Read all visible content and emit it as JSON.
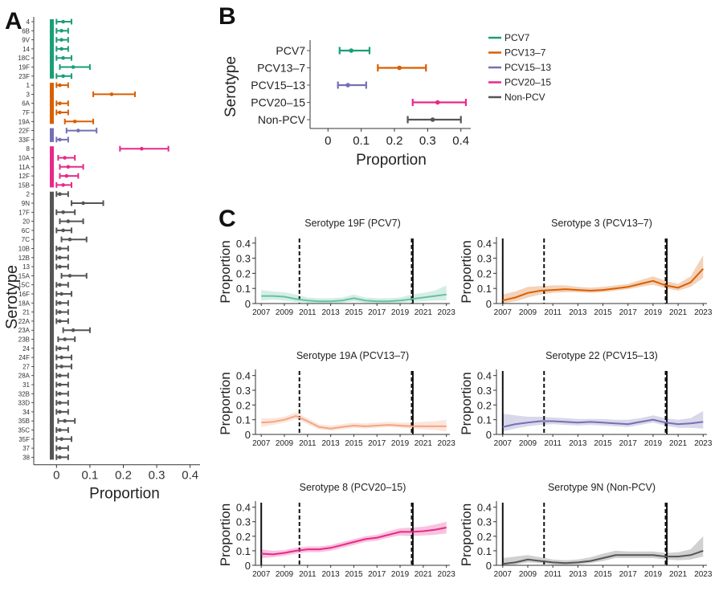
{
  "panel_letters": {
    "a": "A",
    "b": "B",
    "c": "C"
  },
  "colors": {
    "PCV7": "#1a9e77",
    "PCV13-7": "#d95f02",
    "PCV15-13": "#7570b3",
    "PCV20-15": "#e7298a",
    "Non-PCV": "#555555",
    "19A-light": "#f4a582",
    "19F-light": "#66c2a5"
  },
  "chart_data": [
    {
      "id": "A",
      "type": "scatter",
      "orientation": "horizontal",
      "xlabel": "Proportion",
      "ylabel": "Serotype",
      "xlim": [
        -0.02,
        0.42
      ],
      "xticks": [
        0,
        0.1,
        0.2,
        0.3,
        0.4
      ],
      "xtick_labels": [
        "0",
        "0.1",
        "0.2",
        "0.3",
        "0.4"
      ],
      "groups": [
        {
          "name": "PCV7",
          "categories": [
            "4",
            "6B",
            "9V",
            "14",
            "18C",
            "19F",
            "23F"
          ],
          "values": [
            0.02,
            0.015,
            0.015,
            0.015,
            0.02,
            0.05,
            0.02
          ],
          "low": [
            0,
            0,
            0,
            0,
            0,
            0.01,
            0
          ],
          "high": [
            0.045,
            0.035,
            0.035,
            0.035,
            0.045,
            0.1,
            0.045
          ]
        },
        {
          "name": "PCV13-7",
          "categories": [
            "1",
            "3",
            "6A",
            "7F",
            "19A"
          ],
          "values": [
            0.01,
            0.165,
            0.01,
            0.01,
            0.055
          ],
          "low": [
            0,
            0.11,
            0,
            0,
            0.025
          ],
          "high": [
            0.035,
            0.235,
            0.035,
            0.035,
            0.11
          ]
        },
        {
          "name": "PCV15-13",
          "categories": [
            "22F",
            "33F"
          ],
          "values": [
            0.065,
            0.01
          ],
          "low": [
            0.03,
            0
          ],
          "high": [
            0.12,
            0.035
          ]
        },
        {
          "name": "PCV20-15",
          "categories": [
            "8",
            "10A",
            "11A",
            "12F",
            "15B"
          ],
          "values": [
            0.255,
            0.025,
            0.035,
            0.03,
            0.02
          ],
          "low": [
            0.19,
            0.005,
            0.01,
            0.01,
            0
          ],
          "high": [
            0.335,
            0.055,
            0.08,
            0.065,
            0.045
          ]
        },
        {
          "name": "Non-PCV",
          "categories": [
            "2",
            "9N",
            "17F",
            "20",
            "6C",
            "7C",
            "10B",
            "12B",
            "13",
            "15A",
            "15C",
            "16F",
            "18A",
            "21",
            "22A",
            "23A",
            "23B",
            "24",
            "24F",
            "27",
            "28A",
            "31",
            "32B",
            "33D",
            "34",
            "35B",
            "35C",
            "35F",
            "37",
            "38"
          ],
          "values": [
            0.01,
            0.08,
            0.02,
            0.035,
            0.02,
            0.04,
            0.01,
            0.01,
            0.01,
            0.04,
            0.01,
            0.015,
            0.01,
            0.01,
            0.01,
            0.05,
            0.025,
            0.01,
            0.015,
            0.015,
            0.01,
            0.01,
            0.01,
            0.01,
            0.01,
            0.025,
            0.01,
            0.015,
            0.01,
            0.01
          ],
          "low": [
            0,
            0.045,
            0,
            0.01,
            0,
            0.015,
            0,
            0,
            0,
            0.015,
            0,
            0,
            0,
            0,
            0,
            0.02,
            0.005,
            0,
            0,
            0,
            0,
            0,
            0,
            0,
            0,
            0.005,
            0,
            0,
            0,
            0
          ],
          "high": [
            0.035,
            0.14,
            0.055,
            0.08,
            0.045,
            0.09,
            0.035,
            0.035,
            0.035,
            0.09,
            0.035,
            0.045,
            0.035,
            0.035,
            0.035,
            0.1,
            0.055,
            0.035,
            0.045,
            0.045,
            0.035,
            0.035,
            0.035,
            0.035,
            0.035,
            0.055,
            0.035,
            0.045,
            0.035,
            0.035
          ]
        }
      ]
    },
    {
      "id": "B",
      "type": "scatter",
      "orientation": "horizontal",
      "xlabel": "Proportion",
      "ylabel": "Serotype",
      "xlim": [
        -0.02,
        0.42
      ],
      "xticks": [
        0,
        0.1,
        0.2,
        0.3,
        0.4
      ],
      "xtick_labels": [
        "0",
        "0.1",
        "0.2",
        "0.3",
        "0.4"
      ],
      "categories": [
        "PCV7",
        "PCV13–7",
        "PCV15–13",
        "PCV20–15",
        "Non-PCV"
      ],
      "keys": [
        "PCV7",
        "PCV13-7",
        "PCV15-13",
        "PCV20-15",
        "Non-PCV"
      ],
      "values": [
        0.07,
        0.215,
        0.06,
        0.33,
        0.315
      ],
      "low": [
        0.035,
        0.15,
        0.03,
        0.255,
        0.24
      ],
      "high": [
        0.125,
        0.295,
        0.115,
        0.415,
        0.4
      ],
      "legend": {
        "placement": "right",
        "entries": [
          "PCV7",
          "PCV13–7",
          "PCV15–13",
          "PCV20–15",
          "Non-PCV"
        ]
      }
    },
    {
      "id": "C",
      "type": "line",
      "ylabel": "Proportion",
      "xlim": [
        2006.5,
        2023.3
      ],
      "ylim": [
        0,
        0.42
      ],
      "xticks": [
        2007,
        2009,
        2011,
        2013,
        2015,
        2017,
        2019,
        2021,
        2023
      ],
      "xtick_labels": [
        "2007",
        "2009",
        "2011",
        "2013",
        "2015",
        "2017",
        "2019",
        "2021",
        "2023"
      ],
      "yticks": [
        0,
        0.1,
        0.2,
        0.3,
        0.4
      ],
      "ytick_labels": [
        "0",
        "0.1",
        "0.2",
        "0.3",
        "0.4"
      ],
      "panels": [
        {
          "title": "Serotype 19F (PCV7)",
          "color_key": "19F-light",
          "vlines_solid": [
            2020.1
          ],
          "vlines_dashed": [
            2010.3,
            2020.0
          ],
          "x": [
            2007,
            2008,
            2009,
            2010,
            2011,
            2012,
            2013,
            2014,
            2015,
            2016,
            2017,
            2018,
            2019,
            2020,
            2021,
            2022,
            2023
          ],
          "y": [
            0.05,
            0.05,
            0.045,
            0.03,
            0.02,
            0.015,
            0.015,
            0.02,
            0.035,
            0.02,
            0.015,
            0.015,
            0.02,
            0.03,
            0.04,
            0.05,
            0.06
          ],
          "lower": [
            0.02,
            0.025,
            0.02,
            0.01,
            0.005,
            0.0,
            0.0,
            0.005,
            0.015,
            0.005,
            0.0,
            0.0,
            0.005,
            0.01,
            0.015,
            0.02,
            0.02
          ],
          "upper": [
            0.09,
            0.08,
            0.075,
            0.06,
            0.04,
            0.035,
            0.035,
            0.04,
            0.06,
            0.04,
            0.035,
            0.035,
            0.04,
            0.06,
            0.07,
            0.085,
            0.12
          ]
        },
        {
          "title": "Serotype 3 (PCV13–7)",
          "color_key": "PCV13-7",
          "vlines_solid": [
            2007.0,
            2020.1
          ],
          "vlines_dashed": [
            2010.3,
            2020.0
          ],
          "x": [
            2007,
            2008,
            2009,
            2010,
            2011,
            2012,
            2013,
            2014,
            2015,
            2016,
            2017,
            2018,
            2019,
            2020,
            2021,
            2022,
            2023
          ],
          "y": [
            0.02,
            0.04,
            0.07,
            0.085,
            0.09,
            0.095,
            0.09,
            0.085,
            0.09,
            0.1,
            0.11,
            0.13,
            0.15,
            0.12,
            0.105,
            0.14,
            0.23
          ],
          "lower": [
            0.0,
            0.015,
            0.04,
            0.06,
            0.07,
            0.075,
            0.075,
            0.07,
            0.075,
            0.085,
            0.095,
            0.11,
            0.125,
            0.1,
            0.085,
            0.11,
            0.17
          ],
          "upper": [
            0.06,
            0.08,
            0.11,
            0.115,
            0.12,
            0.12,
            0.11,
            0.105,
            0.11,
            0.12,
            0.13,
            0.155,
            0.18,
            0.15,
            0.13,
            0.18,
            0.32
          ]
        },
        {
          "title": "Serotype 19A (PCV13–7)",
          "color_key": "19A-light",
          "vlines_solid": [
            2020.1
          ],
          "vlines_dashed": [
            2010.3,
            2020.0
          ],
          "x": [
            2007,
            2008,
            2009,
            2010,
            2011,
            2012,
            2013,
            2014,
            2015,
            2016,
            2017,
            2018,
            2019,
            2020,
            2021,
            2022,
            2023
          ],
          "y": [
            0.08,
            0.085,
            0.1,
            0.125,
            0.09,
            0.05,
            0.04,
            0.05,
            0.06,
            0.055,
            0.06,
            0.065,
            0.06,
            0.055,
            0.055,
            0.055,
            0.055
          ],
          "lower": [
            0.05,
            0.065,
            0.08,
            0.105,
            0.07,
            0.035,
            0.025,
            0.035,
            0.045,
            0.04,
            0.045,
            0.05,
            0.045,
            0.04,
            0.035,
            0.03,
            0.02
          ],
          "upper": [
            0.11,
            0.11,
            0.12,
            0.15,
            0.11,
            0.07,
            0.06,
            0.07,
            0.08,
            0.075,
            0.08,
            0.085,
            0.08,
            0.08,
            0.085,
            0.09,
            0.1
          ]
        },
        {
          "title": "Serotype 22 (PCV15–13)",
          "color_key": "PCV15-13",
          "vlines_solid": [
            2007.0,
            2020.1
          ],
          "vlines_dashed": [
            2010.3,
            2020.0
          ],
          "x": [
            2007,
            2008,
            2009,
            2010,
            2011,
            2012,
            2013,
            2014,
            2015,
            2016,
            2017,
            2018,
            2019,
            2020,
            2021,
            2022,
            2023
          ],
          "y": [
            0.05,
            0.07,
            0.08,
            0.09,
            0.09,
            0.085,
            0.08,
            0.085,
            0.08,
            0.075,
            0.07,
            0.085,
            0.1,
            0.08,
            0.07,
            0.075,
            0.085
          ],
          "lower": [
            0.02,
            0.04,
            0.055,
            0.065,
            0.07,
            0.065,
            0.06,
            0.065,
            0.06,
            0.055,
            0.05,
            0.065,
            0.08,
            0.06,
            0.045,
            0.045,
            0.04
          ],
          "upper": [
            0.14,
            0.13,
            0.12,
            0.12,
            0.115,
            0.11,
            0.105,
            0.105,
            0.105,
            0.1,
            0.1,
            0.11,
            0.13,
            0.11,
            0.1,
            0.11,
            0.16
          ]
        },
        {
          "title": "Serotype 8 (PCV20–15)",
          "color_key": "PCV20-15",
          "vlines_solid": [
            2007.0,
            2020.1
          ],
          "vlines_dashed": [
            2010.3,
            2020.0
          ],
          "x": [
            2007,
            2008,
            2009,
            2010,
            2011,
            2012,
            2013,
            2014,
            2015,
            2016,
            2017,
            2018,
            2019,
            2020,
            2021,
            2022,
            2023
          ],
          "y": [
            0.08,
            0.075,
            0.085,
            0.1,
            0.11,
            0.11,
            0.12,
            0.14,
            0.16,
            0.18,
            0.19,
            0.21,
            0.23,
            0.23,
            0.235,
            0.245,
            0.26
          ],
          "lower": [
            0.05,
            0.055,
            0.065,
            0.08,
            0.09,
            0.09,
            0.1,
            0.12,
            0.14,
            0.16,
            0.17,
            0.19,
            0.205,
            0.2,
            0.205,
            0.21,
            0.22
          ],
          "upper": [
            0.11,
            0.1,
            0.105,
            0.12,
            0.13,
            0.13,
            0.14,
            0.16,
            0.18,
            0.2,
            0.21,
            0.235,
            0.255,
            0.26,
            0.265,
            0.28,
            0.3
          ]
        },
        {
          "title": "Serotype 9N (Non-PCV)",
          "color_key": "Non-PCV",
          "vlines_solid": [
            2007.0,
            2020.1
          ],
          "vlines_dashed": [
            2010.3,
            2020.0
          ],
          "x": [
            2007,
            2008,
            2009,
            2010,
            2011,
            2012,
            2013,
            2014,
            2015,
            2016,
            2017,
            2018,
            2019,
            2020,
            2021,
            2022,
            2023
          ],
          "y": [
            0.01,
            0.02,
            0.04,
            0.03,
            0.02,
            0.015,
            0.02,
            0.03,
            0.05,
            0.07,
            0.07,
            0.07,
            0.07,
            0.06,
            0.06,
            0.07,
            0.1
          ],
          "lower": [
            0.0,
            0.005,
            0.02,
            0.015,
            0.005,
            0.0,
            0.005,
            0.015,
            0.03,
            0.05,
            0.05,
            0.05,
            0.05,
            0.04,
            0.035,
            0.04,
            0.06
          ],
          "upper": [
            0.05,
            0.06,
            0.07,
            0.055,
            0.04,
            0.035,
            0.04,
            0.055,
            0.08,
            0.1,
            0.095,
            0.095,
            0.095,
            0.085,
            0.09,
            0.11,
            0.2
          ]
        }
      ]
    }
  ]
}
